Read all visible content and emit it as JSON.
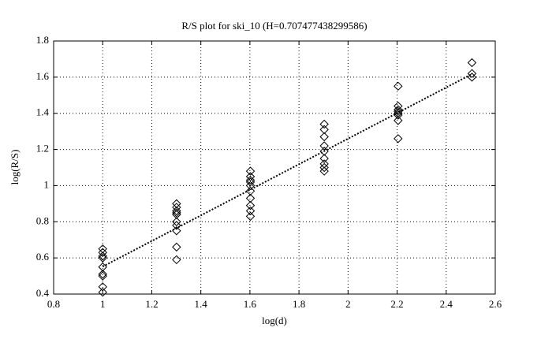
{
  "chart_data": {
    "type": "scatter",
    "title": "R/S plot for ski_10 (H=0.707477438299586)",
    "x_label": "log(d)",
    "y_label": "log(R/S)",
    "x": [
      1,
      1,
      1,
      1,
      1,
      1,
      1,
      1,
      1,
      1.301,
      1.301,
      1.301,
      1.301,
      1.301,
      1.301,
      1.301,
      1.301,
      1.301,
      1.301,
      1.602,
      1.602,
      1.602,
      1.602,
      1.602,
      1.602,
      1.602,
      1.602,
      1.602,
      1.602,
      1.903,
      1.903,
      1.903,
      1.903,
      1.903,
      1.903,
      1.903,
      1.903,
      1.903,
      2.204,
      2.204,
      2.204,
      2.204,
      2.204,
      2.204,
      2.204,
      2.204,
      2.505,
      2.505,
      2.505
    ],
    "y": [
      0.65,
      0.63,
      0.61,
      0.6,
      0.55,
      0.51,
      0.5,
      0.44,
      0.41,
      0.9,
      0.88,
      0.86,
      0.85,
      0.84,
      0.8,
      0.78,
      0.75,
      0.66,
      0.59,
      1.08,
      1.05,
      1.03,
      1.02,
      1.0,
      0.97,
      0.93,
      0.89,
      0.86,
      0.83,
      1.34,
      1.31,
      1.27,
      1.22,
      1.19,
      1.15,
      1.12,
      1.1,
      1.08,
      1.55,
      1.44,
      1.42,
      1.41,
      1.4,
      1.39,
      1.36,
      1.26,
      1.68,
      1.62,
      1.6
    ],
    "marker_color": "#000000",
    "fit_line": {
      "x": [
        1,
        2.505
      ],
      "y": [
        0.552,
        1.617
      ],
      "color": "#000000"
    },
    "xlim": [
      0.8,
      2.6
    ],
    "xticks": [
      0.8,
      1,
      1.2,
      1.4,
      1.6,
      1.8,
      2,
      2.2,
      2.4,
      2.6
    ],
    "ylim": [
      0.4,
      1.8
    ],
    "yticks": [
      0.4,
      0.6,
      0.8,
      1,
      1.2,
      1.4,
      1.6,
      1.8
    ],
    "grid": true
  }
}
